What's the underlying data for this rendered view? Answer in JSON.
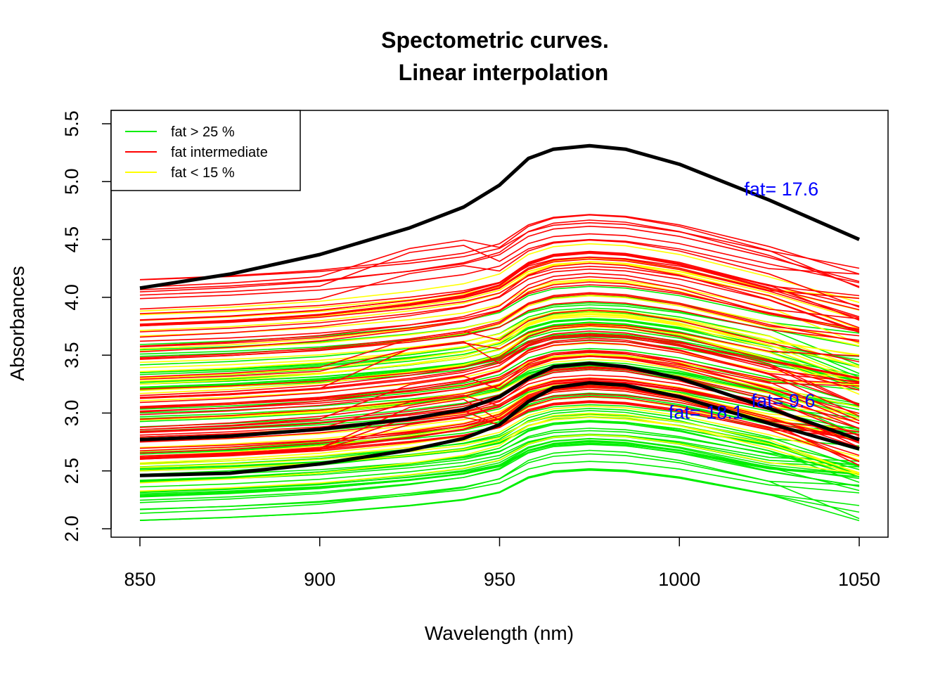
{
  "chart_data": {
    "type": "line",
    "title": [
      "Spectometric curves.",
      "Linear interpolation"
    ],
    "xlabel": "Wavelength (nm)",
    "ylabel": "Absorbances",
    "xlim": [
      842,
      1058
    ],
    "ylim": [
      1.93,
      5.6
    ],
    "xticks": [
      850,
      900,
      950,
      1000,
      1050
    ],
    "yticks": [
      2.0,
      2.5,
      3.0,
      3.5,
      4.0,
      4.5,
      5.0,
      5.5
    ],
    "xtick_labels": [
      "850",
      "900",
      "950",
      "1000",
      "1050"
    ],
    "ytick_labels": [
      "2.0",
      "2.5",
      "3.0",
      "3.5",
      "4.0",
      "4.5",
      "5.0",
      "5.5"
    ],
    "grid": false,
    "legend": {
      "position": "top-left",
      "entries": [
        {
          "label": "fat > 25 %",
          "color": "#00ee00"
        },
        {
          "label": "fat intermediate",
          "color": "#ff0000"
        },
        {
          "label": "fat < 15 %",
          "color": "#ffff00"
        }
      ]
    },
    "colors": {
      "high_fat": "#00ee00",
      "intermediate": "#ff0000",
      "low_fat": "#ffff00",
      "highlight": "#000000",
      "annotation": "#0000ff"
    },
    "background_curves": {
      "x": [
        850,
        875,
        900,
        925,
        940,
        950,
        958,
        965,
        975,
        985,
        1000,
        1025,
        1050
      ],
      "note_count_per_group": {
        "high_fat": 60,
        "intermediate": 60,
        "low_fat": 35
      },
      "high_fat_start_range": [
        2.07,
        3.6
      ],
      "intermediate_start_range": [
        2.6,
        4.25
      ],
      "low_fat_start_range": [
        2.3,
        3.9
      ]
    },
    "highlighted_series": [
      {
        "label": "fat= 17.6",
        "x": [
          850,
          875,
          900,
          925,
          940,
          950,
          958,
          965,
          975,
          985,
          1000,
          1025,
          1050
        ],
        "values": [
          4.08,
          4.2,
          4.37,
          4.6,
          4.78,
          4.97,
          5.2,
          5.28,
          5.31,
          5.28,
          5.15,
          4.84,
          4.5
        ]
      },
      {
        "label": "fat= 9.6",
        "x": [
          850,
          875,
          900,
          925,
          940,
          950,
          958,
          965,
          975,
          985,
          1000,
          1025,
          1050
        ],
        "values": [
          2.77,
          2.8,
          2.86,
          2.95,
          3.03,
          3.14,
          3.3,
          3.4,
          3.43,
          3.4,
          3.3,
          3.04,
          2.77
        ]
      },
      {
        "label": "fat= 18.1",
        "x": [
          850,
          875,
          900,
          925,
          940,
          950,
          958,
          965,
          975,
          985,
          1000,
          1025,
          1050
        ],
        "values": [
          2.46,
          2.48,
          2.56,
          2.68,
          2.78,
          2.9,
          3.1,
          3.22,
          3.26,
          3.24,
          3.14,
          2.91,
          2.69
        ]
      }
    ],
    "annotations": [
      {
        "text": "fat= 17.6",
        "x": 1018,
        "y": 4.88
      },
      {
        "text": "fat= 9.6",
        "x": 1020,
        "y": 3.05
      },
      {
        "text": "fat= 18.1",
        "x": 997,
        "y": 2.95
      }
    ]
  }
}
